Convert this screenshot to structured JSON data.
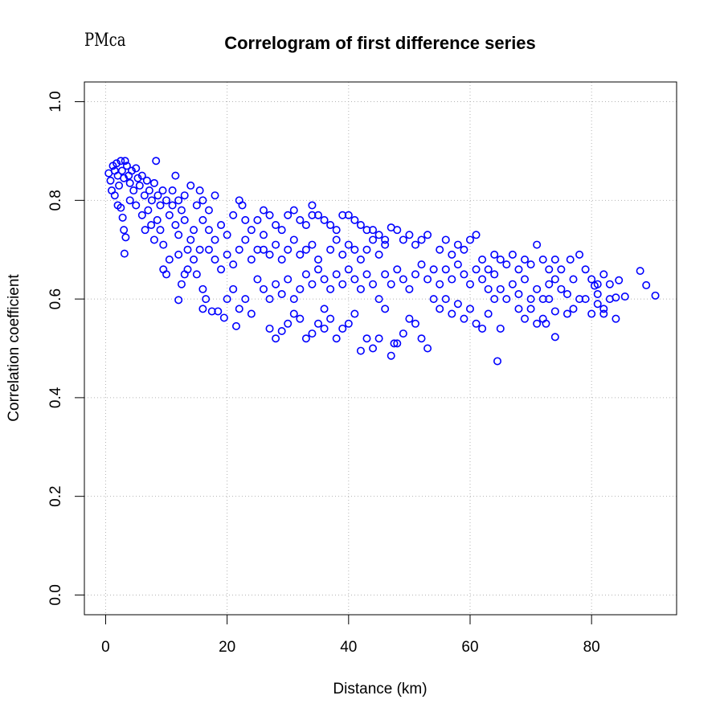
{
  "corner_label": "PMca",
  "chart_data": {
    "type": "scatter",
    "title": "Correlogram of first difference series",
    "xlabel": "Distance (km)",
    "ylabel": "Correlation coefficient",
    "xlim": [
      -3.5,
      94
    ],
    "ylim": [
      -0.04,
      1.04
    ],
    "x_ticks": [
      0,
      20,
      40,
      60,
      80
    ],
    "y_ticks": [
      0.0,
      0.2,
      0.4,
      0.6,
      0.8,
      1.0
    ],
    "x_tick_labels": [
      "0",
      "20",
      "40",
      "60",
      "80"
    ],
    "y_tick_labels": [
      "0.0",
      "0.2",
      "0.4",
      "0.6",
      "0.8",
      "1.0"
    ],
    "grid": true,
    "marker": "open-circle",
    "color": "#0000ff",
    "series": [
      {
        "points": [
          [
            0.5,
            0.855
          ],
          [
            0.8,
            0.84
          ],
          [
            1.0,
            0.82
          ],
          [
            1.2,
            0.87
          ],
          [
            1.5,
            0.86
          ],
          [
            1.8,
            0.875
          ],
          [
            2.0,
            0.85
          ],
          [
            2.2,
            0.83
          ],
          [
            2.5,
            0.88
          ],
          [
            2.7,
            0.86
          ],
          [
            3.0,
            0.845
          ],
          [
            3.2,
            0.88
          ],
          [
            3.5,
            0.87
          ],
          [
            3.8,
            0.85
          ],
          [
            4.0,
            0.835
          ],
          [
            4.3,
            0.86
          ],
          [
            4.6,
            0.82
          ],
          [
            5.0,
            0.865
          ],
          [
            5.3,
            0.845
          ],
          [
            5.6,
            0.83
          ],
          [
            6.0,
            0.85
          ],
          [
            6.4,
            0.81
          ],
          [
            6.8,
            0.84
          ],
          [
            7.2,
            0.82
          ],
          [
            7.6,
            0.8
          ],
          [
            8.0,
            0.835
          ],
          [
            8.3,
            0.88
          ],
          [
            8.6,
            0.81
          ],
          [
            9.0,
            0.79
          ],
          [
            9.4,
            0.82
          ],
          [
            1.5,
            0.81
          ],
          [
            2.0,
            0.79
          ],
          [
            2.5,
            0.785
          ],
          [
            2.8,
            0.765
          ],
          [
            3.0,
            0.74
          ],
          [
            3.3,
            0.725
          ],
          [
            3.1,
            0.692
          ],
          [
            4.0,
            0.8
          ],
          [
            5.0,
            0.79
          ],
          [
            6.0,
            0.77
          ],
          [
            6.5,
            0.74
          ],
          [
            7.0,
            0.78
          ],
          [
            7.5,
            0.75
          ],
          [
            8.0,
            0.72
          ],
          [
            8.5,
            0.76
          ],
          [
            9.0,
            0.74
          ],
          [
            9.5,
            0.71
          ],
          [
            9.5,
            0.66
          ],
          [
            10.0,
            0.65
          ],
          [
            10.5,
            0.68
          ],
          [
            10.0,
            0.8
          ],
          [
            10.5,
            0.77
          ],
          [
            11.0,
            0.79
          ],
          [
            11.5,
            0.75
          ],
          [
            12.0,
            0.73
          ],
          [
            12.5,
            0.78
          ],
          [
            13.0,
            0.76
          ],
          [
            13.5,
            0.7
          ],
          [
            14.0,
            0.72
          ],
          [
            14.5,
            0.74
          ],
          [
            11.0,
            0.82
          ],
          [
            11.5,
            0.85
          ],
          [
            12.0,
            0.8
          ],
          [
            13.0,
            0.81
          ],
          [
            14.0,
            0.83
          ],
          [
            15.0,
            0.79
          ],
          [
            15.5,
            0.82
          ],
          [
            16.0,
            0.8
          ],
          [
            17.0,
            0.78
          ],
          [
            18.0,
            0.81
          ],
          [
            12.0,
            0.69
          ],
          [
            12.5,
            0.63
          ],
          [
            13.0,
            0.65
          ],
          [
            12.0,
            0.598
          ],
          [
            13.5,
            0.66
          ],
          [
            14.5,
            0.68
          ],
          [
            15.0,
            0.65
          ],
          [
            15.5,
            0.7
          ],
          [
            16.0,
            0.62
          ],
          [
            16.5,
            0.6
          ],
          [
            16.0,
            0.58
          ],
          [
            17.5,
            0.575
          ],
          [
            18.5,
            0.575
          ],
          [
            19.5,
            0.562
          ],
          [
            21.5,
            0.545
          ],
          [
            20.0,
            0.6
          ],
          [
            21.0,
            0.62
          ],
          [
            22.0,
            0.58
          ],
          [
            23.0,
            0.6
          ],
          [
            24.0,
            0.57
          ],
          [
            16.0,
            0.76
          ],
          [
            17.0,
            0.74
          ],
          [
            18.0,
            0.72
          ],
          [
            19.0,
            0.75
          ],
          [
            20.0,
            0.73
          ],
          [
            21.0,
            0.77
          ],
          [
            22.0,
            0.8
          ],
          [
            22.5,
            0.79
          ],
          [
            23.0,
            0.76
          ],
          [
            24.0,
            0.74
          ],
          [
            17.0,
            0.7
          ],
          [
            18.0,
            0.68
          ],
          [
            19.0,
            0.66
          ],
          [
            20.0,
            0.69
          ],
          [
            21.0,
            0.67
          ],
          [
            22.0,
            0.7
          ],
          [
            23.0,
            0.72
          ],
          [
            24.0,
            0.68
          ],
          [
            25.0,
            0.7
          ],
          [
            26.0,
            0.73
          ],
          [
            25.0,
            0.76
          ],
          [
            26.0,
            0.78
          ],
          [
            27.0,
            0.77
          ],
          [
            28.0,
            0.75
          ],
          [
            29.0,
            0.74
          ],
          [
            30.0,
            0.77
          ],
          [
            31.0,
            0.78
          ],
          [
            32.0,
            0.76
          ],
          [
            33.0,
            0.75
          ],
          [
            34.0,
            0.77
          ],
          [
            25.0,
            0.64
          ],
          [
            26.0,
            0.62
          ],
          [
            27.0,
            0.6
          ],
          [
            28.0,
            0.63
          ],
          [
            29.0,
            0.61
          ],
          [
            30.0,
            0.64
          ],
          [
            31.0,
            0.6
          ],
          [
            32.0,
            0.62
          ],
          [
            33.0,
            0.65
          ],
          [
            34.0,
            0.63
          ],
          [
            27.0,
            0.54
          ],
          [
            28.0,
            0.52
          ],
          [
            29.0,
            0.535
          ],
          [
            30.0,
            0.55
          ],
          [
            31.0,
            0.57
          ],
          [
            32.0,
            0.56
          ],
          [
            33.0,
            0.52
          ],
          [
            34.0,
            0.53
          ],
          [
            35.0,
            0.55
          ],
          [
            36.0,
            0.54
          ],
          [
            26.0,
            0.7
          ],
          [
            27.0,
            0.69
          ],
          [
            28.0,
            0.71
          ],
          [
            29.0,
            0.68
          ],
          [
            30.0,
            0.7
          ],
          [
            31.0,
            0.72
          ],
          [
            32.0,
            0.69
          ],
          [
            33.0,
            0.7
          ],
          [
            34.0,
            0.71
          ],
          [
            35.0,
            0.68
          ],
          [
            34.0,
            0.79
          ],
          [
            35.0,
            0.77
          ],
          [
            36.0,
            0.76
          ],
          [
            37.0,
            0.75
          ],
          [
            38.0,
            0.74
          ],
          [
            39.0,
            0.77
          ],
          [
            40.0,
            0.77
          ],
          [
            41.0,
            0.76
          ],
          [
            42.0,
            0.75
          ],
          [
            43.0,
            0.74
          ],
          [
            35.0,
            0.66
          ],
          [
            36.0,
            0.64
          ],
          [
            37.0,
            0.62
          ],
          [
            38.0,
            0.65
          ],
          [
            39.0,
            0.63
          ],
          [
            40.0,
            0.66
          ],
          [
            41.0,
            0.64
          ],
          [
            42.0,
            0.62
          ],
          [
            43.0,
            0.65
          ],
          [
            44.0,
            0.63
          ],
          [
            36.0,
            0.58
          ],
          [
            37.0,
            0.56
          ],
          [
            38.0,
            0.52
          ],
          [
            39.0,
            0.54
          ],
          [
            40.0,
            0.55
          ],
          [
            41.0,
            0.57
          ],
          [
            42.0,
            0.495
          ],
          [
            43.0,
            0.52
          ],
          [
            44.0,
            0.5
          ],
          [
            45.0,
            0.52
          ],
          [
            37.0,
            0.7
          ],
          [
            38.0,
            0.72
          ],
          [
            39.0,
            0.69
          ],
          [
            40.0,
            0.71
          ],
          [
            41.0,
            0.7
          ],
          [
            42.0,
            0.68
          ],
          [
            43.0,
            0.7
          ],
          [
            44.0,
            0.72
          ],
          [
            45.0,
            0.69
          ],
          [
            46.0,
            0.71
          ],
          [
            44.0,
            0.74
          ],
          [
            45.0,
            0.73
          ],
          [
            46.0,
            0.72
          ],
          [
            47.0,
            0.745
          ],
          [
            48.0,
            0.74
          ],
          [
            49.0,
            0.72
          ],
          [
            50.0,
            0.73
          ],
          [
            51.0,
            0.71
          ],
          [
            52.0,
            0.72
          ],
          [
            53.0,
            0.73
          ],
          [
            45.0,
            0.6
          ],
          [
            46.0,
            0.58
          ],
          [
            47.0,
            0.485
          ],
          [
            47.5,
            0.51
          ],
          [
            48.0,
            0.51
          ],
          [
            49.0,
            0.53
          ],
          [
            50.0,
            0.56
          ],
          [
            51.0,
            0.55
          ],
          [
            52.0,
            0.52
          ],
          [
            53.0,
            0.5
          ],
          [
            46.0,
            0.65
          ],
          [
            47.0,
            0.63
          ],
          [
            48.0,
            0.66
          ],
          [
            49.0,
            0.64
          ],
          [
            50.0,
            0.62
          ],
          [
            51.0,
            0.65
          ],
          [
            52.0,
            0.67
          ],
          [
            53.0,
            0.64
          ],
          [
            54.0,
            0.66
          ],
          [
            55.0,
            0.63
          ],
          [
            54.0,
            0.6
          ],
          [
            55.0,
            0.58
          ],
          [
            56.0,
            0.6
          ],
          [
            57.0,
            0.57
          ],
          [
            58.0,
            0.59
          ],
          [
            59.0,
            0.56
          ],
          [
            60.0,
            0.58
          ],
          [
            61.0,
            0.55
          ],
          [
            62.0,
            0.54
          ],
          [
            63.0,
            0.57
          ],
          [
            55.0,
            0.7
          ],
          [
            56.0,
            0.72
          ],
          [
            57.0,
            0.69
          ],
          [
            58.0,
            0.71
          ],
          [
            59.0,
            0.7
          ],
          [
            60.0,
            0.72
          ],
          [
            61.0,
            0.73
          ],
          [
            62.0,
            0.68
          ],
          [
            63.0,
            0.66
          ],
          [
            64.0,
            0.69
          ],
          [
            56.0,
            0.66
          ],
          [
            57.0,
            0.64
          ],
          [
            58.0,
            0.67
          ],
          [
            59.0,
            0.65
          ],
          [
            60.0,
            0.63
          ],
          [
            61.0,
            0.66
          ],
          [
            62.0,
            0.64
          ],
          [
            63.0,
            0.62
          ],
          [
            64.0,
            0.65
          ],
          [
            65.0,
            0.68
          ],
          [
            64.0,
            0.6
          ],
          [
            65.0,
            0.62
          ],
          [
            66.0,
            0.6
          ],
          [
            67.0,
            0.63
          ],
          [
            68.0,
            0.61
          ],
          [
            69.0,
            0.64
          ],
          [
            70.0,
            0.6
          ],
          [
            71.0,
            0.62
          ],
          [
            72.0,
            0.6
          ],
          [
            73.0,
            0.63
          ],
          [
            64.5,
            0.474
          ],
          [
            65.0,
            0.54
          ],
          [
            68.0,
            0.58
          ],
          [
            69.0,
            0.56
          ],
          [
            70.0,
            0.58
          ],
          [
            71.0,
            0.55
          ],
          [
            72.0,
            0.56
          ],
          [
            73.0,
            0.6
          ],
          [
            74.0,
            0.575
          ],
          [
            74.0,
            0.523
          ],
          [
            66.0,
            0.67
          ],
          [
            67.0,
            0.69
          ],
          [
            68.0,
            0.66
          ],
          [
            69.0,
            0.68
          ],
          [
            70.0,
            0.67
          ],
          [
            71.0,
            0.71
          ],
          [
            72.0,
            0.68
          ],
          [
            73.0,
            0.66
          ],
          [
            74.0,
            0.68
          ],
          [
            75.0,
            0.66
          ],
          [
            74.0,
            0.64
          ],
          [
            75.0,
            0.62
          ],
          [
            76.0,
            0.61
          ],
          [
            77.0,
            0.64
          ],
          [
            78.0,
            0.69
          ],
          [
            79.0,
            0.66
          ],
          [
            80.0,
            0.64
          ],
          [
            81.0,
            0.63
          ],
          [
            82.0,
            0.65
          ],
          [
            83.0,
            0.63
          ],
          [
            79.0,
            0.6
          ],
          [
            80.0,
            0.57
          ],
          [
            81.0,
            0.59
          ],
          [
            82.0,
            0.57
          ],
          [
            83.0,
            0.6
          ],
          [
            84.0,
            0.56
          ],
          [
            84.0,
            0.603
          ],
          [
            84.5,
            0.638
          ],
          [
            85.5,
            0.605
          ],
          [
            88.0,
            0.657
          ],
          [
            89.0,
            0.628
          ],
          [
            90.5,
            0.607
          ],
          [
            76.0,
            0.57
          ],
          [
            77.0,
            0.58
          ],
          [
            78.0,
            0.6
          ],
          [
            80.5,
            0.627
          ],
          [
            82.0,
            0.58
          ],
          [
            81.0,
            0.61
          ],
          [
            76.5,
            0.68
          ],
          [
            72.5,
            0.55
          ]
        ]
      }
    ]
  }
}
